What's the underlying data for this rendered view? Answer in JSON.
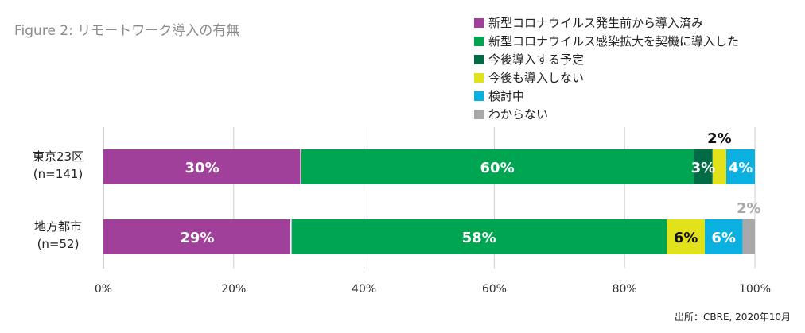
{
  "title": "Figure 2: リモートワーク導入の有無",
  "source": "出所：CBRE, 2020年10月",
  "legend_position": "top-right",
  "chart_data": {
    "type": "bar",
    "orientation": "horizontal",
    "stacked": true,
    "categories": [
      {
        "line1": "東京23区",
        "line2": "(n=141)"
      },
      {
        "line1": "地方都市",
        "line2": "(n=52)"
      }
    ],
    "series": [
      {
        "name": "新型コロナウイルス発生前から導入済み",
        "color": "#a0409a",
        "values": [
          30.3,
          28.8
        ],
        "labels": [
          "30%",
          "29%"
        ]
      },
      {
        "name": "新型コロナウイルス感染拡大を契機に導入した",
        "color": "#00a551",
        "values": [
          60.3,
          57.7
        ],
        "labels": [
          "60%",
          "58%"
        ]
      },
      {
        "name": "今後導入する予定",
        "color": "#006b45",
        "values": [
          2.9,
          0
        ],
        "labels": [
          "3%",
          ""
        ]
      },
      {
        "name": "今後も導入しない",
        "color": "#e2e21a",
        "values": [
          2.1,
          5.8
        ],
        "labels": [
          "2%",
          "6%"
        ]
      },
      {
        "name": "検討中",
        "color": "#0ab1e0",
        "values": [
          4.4,
          5.8
        ],
        "labels": [
          "4%",
          "6%"
        ]
      },
      {
        "name": "わからない",
        "color": "#a8a8a8",
        "values": [
          0,
          1.9
        ],
        "labels": [
          "",
          "2%"
        ]
      }
    ],
    "xlim": [
      0,
      100
    ],
    "xticks": [
      "0%",
      "20%",
      "40%",
      "60%",
      "80%",
      "100%"
    ],
    "grid": true
  }
}
